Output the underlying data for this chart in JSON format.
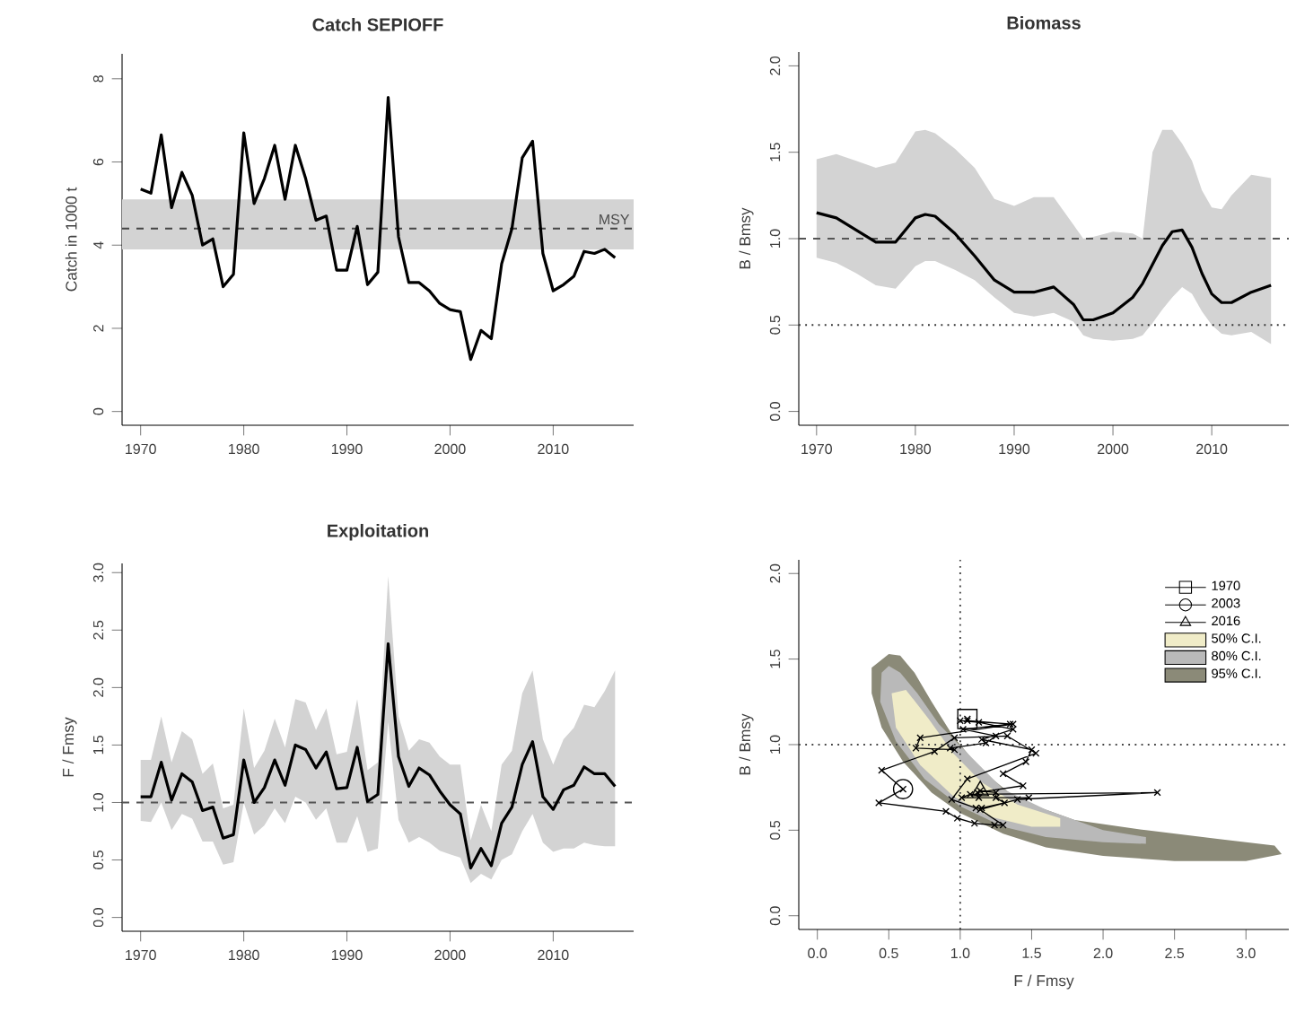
{
  "chart_data": [
    {
      "type": "line",
      "title": "Catch SEPIOFF",
      "ylabel": "Catch in 1000 t",
      "x": [
        1970,
        1971,
        1972,
        1973,
        1974,
        1975,
        1976,
        1977,
        1978,
        1979,
        1980,
        1981,
        1982,
        1983,
        1984,
        1985,
        1986,
        1987,
        1988,
        1989,
        1990,
        1991,
        1992,
        1993,
        1994,
        1995,
        1996,
        1997,
        1998,
        1999,
        2000,
        2001,
        2002,
        2003,
        2004,
        2005,
        2006,
        2007,
        2008,
        2009,
        2010,
        2011,
        2012,
        2013,
        2014,
        2015,
        2016
      ],
      "series": [
        {
          "color": "#000000",
          "values": [
            5.35,
            5.25,
            6.65,
            4.9,
            5.75,
            5.2,
            4.0,
            4.15,
            3.0,
            3.3,
            6.7,
            5.0,
            5.6,
            6.4,
            5.1,
            6.4,
            5.6,
            4.6,
            4.7,
            3.4,
            3.4,
            4.45,
            3.05,
            3.35,
            7.55,
            4.2,
            3.1,
            3.1,
            2.9,
            2.6,
            2.45,
            2.4,
            1.25,
            1.95,
            1.75,
            3.55,
            4.4,
            6.1,
            6.5,
            3.8,
            2.9,
            3.05,
            3.25,
            3.85,
            3.8,
            3.9,
            3.7
          ]
        }
      ],
      "bands": [
        {
          "axis": "y",
          "from": 3.9,
          "to": 5.1,
          "color": "#d3d3d3"
        }
      ],
      "ref_lines": [
        {
          "axis": "y",
          "value": 4.4,
          "label": "MSY",
          "color": "#444444",
          "line_style": "dashed"
        }
      ],
      "xlim": [
        1968.2,
        2017.8
      ],
      "ylim": [
        -0.33,
        8.6
      ],
      "xticks": [
        1970,
        1980,
        1990,
        2000,
        2010
      ],
      "yticks": [
        0,
        2,
        4,
        6,
        8
      ]
    },
    {
      "type": "line",
      "title": "Biomass",
      "ylabel": "B / Bmsy",
      "series": [
        {
          "color": "#000000",
          "x": [
            1970,
            1972,
            1974,
            1976,
            1978,
            1980,
            1981,
            1982,
            1984,
            1986,
            1988,
            1990,
            1992,
            1994,
            1996,
            1997,
            1998,
            2000,
            2002,
            2003,
            2004,
            2005,
            2006,
            2007,
            2008,
            2009,
            2010,
            2011,
            2012,
            2014,
            2016
          ],
          "values": [
            1.15,
            1.12,
            1.05,
            0.98,
            0.98,
            1.12,
            1.14,
            1.13,
            1.03,
            0.9,
            0.76,
            0.69,
            0.69,
            0.72,
            0.62,
            0.53,
            0.53,
            0.57,
            0.66,
            0.74,
            0.85,
            0.96,
            1.04,
            1.05,
            0.95,
            0.8,
            0.68,
            0.63,
            0.63,
            0.69,
            0.73
          ],
          "upper": [
            1.46,
            1.49,
            1.45,
            1.41,
            1.44,
            1.62,
            1.63,
            1.61,
            1.52,
            1.41,
            1.23,
            1.19,
            1.24,
            1.24,
            1.08,
            1.0,
            1.01,
            1.04,
            1.03,
            1.0,
            1.5,
            1.63,
            1.63,
            1.55,
            1.45,
            1.28,
            1.18,
            1.17,
            1.25,
            1.37,
            1.35
          ],
          "lower": [
            0.89,
            0.86,
            0.8,
            0.73,
            0.71,
            0.84,
            0.87,
            0.87,
            0.82,
            0.76,
            0.66,
            0.57,
            0.55,
            0.57,
            0.52,
            0.44,
            0.42,
            0.41,
            0.42,
            0.44,
            0.51,
            0.59,
            0.66,
            0.72,
            0.68,
            0.58,
            0.5,
            0.45,
            0.44,
            0.46,
            0.39
          ]
        }
      ],
      "ref_lines": [
        {
          "axis": "y",
          "value": 1.0,
          "color": "#555555",
          "line_style": "dashed"
        },
        {
          "axis": "y",
          "value": 0.5,
          "color": "#333333",
          "line_style": "dotted"
        }
      ],
      "xlim": [
        1968.2,
        2017.8
      ],
      "ylim": [
        -0.08,
        2.08
      ],
      "xticks": [
        1970,
        1980,
        1990,
        2000,
        2010
      ],
      "yticks": [
        {
          "value": 0,
          "label": "0.0"
        },
        {
          "value": 0.5,
          "label": "0.5"
        },
        {
          "value": 1,
          "label": "1.0"
        },
        {
          "value": 1.5,
          "label": "1.5"
        },
        {
          "value": 2,
          "label": "2.0"
        }
      ]
    },
    {
      "type": "line",
      "title": "Exploitation",
      "ylabel": "F / Fmsy",
      "x": [
        1970,
        1971,
        1972,
        1973,
        1974,
        1975,
        1976,
        1977,
        1978,
        1979,
        1980,
        1981,
        1982,
        1983,
        1984,
        1985,
        1986,
        1987,
        1988,
        1989,
        1990,
        1991,
        1992,
        1993,
        1994,
        1995,
        1996,
        1997,
        1998,
        1999,
        2000,
        2001,
        2002,
        2003,
        2004,
        2005,
        2006,
        2007,
        2008,
        2009,
        2010,
        2011,
        2012,
        2013,
        2014,
        2015,
        2016
      ],
      "series": [
        {
          "color": "#000000",
          "values": [
            1.05,
            1.05,
            1.35,
            1.02,
            1.25,
            1.18,
            0.93,
            0.96,
            0.69,
            0.72,
            1.37,
            1.0,
            1.13,
            1.37,
            1.15,
            1.5,
            1.46,
            1.3,
            1.44,
            1.12,
            1.13,
            1.48,
            1.01,
            1.07,
            2.38,
            1.4,
            1.14,
            1.3,
            1.24,
            1.1,
            0.98,
            0.9,
            0.43,
            0.6,
            0.45,
            0.82,
            0.96,
            1.33,
            1.53,
            1.05,
            0.94,
            1.11,
            1.15,
            1.31,
            1.25,
            1.25,
            1.14
          ],
          "upper": [
            1.37,
            1.37,
            1.75,
            1.35,
            1.62,
            1.55,
            1.25,
            1.34,
            0.95,
            0.98,
            1.82,
            1.3,
            1.45,
            1.73,
            1.48,
            1.9,
            1.87,
            1.63,
            1.82,
            1.42,
            1.44,
            1.9,
            1.28,
            1.35,
            2.97,
            1.75,
            1.45,
            1.55,
            1.52,
            1.4,
            1.33,
            1.33,
            0.67,
            0.98,
            0.75,
            1.33,
            1.45,
            1.95,
            2.15,
            1.55,
            1.33,
            1.55,
            1.65,
            1.85,
            1.83,
            1.97,
            2.15
          ],
          "lower": [
            0.84,
            0.83,
            1.0,
            0.76,
            0.9,
            0.86,
            0.66,
            0.66,
            0.46,
            0.48,
            1.0,
            0.72,
            0.8,
            0.95,
            0.82,
            1.05,
            1.0,
            0.85,
            0.95,
            0.65,
            0.65,
            0.88,
            0.57,
            0.6,
            1.7,
            0.85,
            0.65,
            0.7,
            0.65,
            0.58,
            0.55,
            0.52,
            0.3,
            0.38,
            0.33,
            0.5,
            0.55,
            0.75,
            0.9,
            0.65,
            0.57,
            0.6,
            0.6,
            0.65,
            0.63,
            0.62,
            0.62
          ]
        }
      ],
      "ref_lines": [
        {
          "axis": "y",
          "value": 1.0,
          "color": "#555555",
          "line_style": "dashed"
        }
      ],
      "xlim": [
        1968.2,
        2017.8
      ],
      "ylim": [
        -0.12,
        3.08
      ],
      "xticks": [
        1970,
        1980,
        1990,
        2000,
        2010
      ],
      "yticks": [
        {
          "value": 0,
          "label": "0.0"
        },
        {
          "value": 0.5,
          "label": "0.5"
        },
        {
          "value": 1,
          "label": "1.0"
        },
        {
          "value": 1.5,
          "label": "1.5"
        },
        {
          "value": 2,
          "label": "2.0"
        },
        {
          "value": 2.5,
          "label": "2.5"
        },
        {
          "value": 3,
          "label": "3.0"
        }
      ]
    },
    {
      "type": "line",
      "xlabel": "F / Fmsy",
      "ylabel": "B / Bmsy",
      "legend": "top right",
      "series": [
        {
          "name": "1970",
          "type": "scatter",
          "marker": "square",
          "color": "#000000",
          "x": [
            1.05
          ],
          "values": [
            1.15
          ]
        },
        {
          "name": "2003",
          "type": "scatter",
          "marker": "circle",
          "color": "#000000",
          "x": [
            0.6
          ],
          "values": [
            0.74
          ]
        },
        {
          "name": "2016",
          "type": "scatter",
          "marker": "triangle",
          "color": "#000000",
          "x": [
            1.14
          ],
          "values": [
            0.73
          ]
        },
        {
          "name": "50% C.I.",
          "type": "area",
          "color": "#f0ecc8",
          "x": [
            0.52,
            0.55,
            0.72,
            0.95,
            1.2,
            1.5,
            1.7,
            1.7,
            1.4,
            1.15,
            0.95,
            0.78,
            0.62,
            0.52
          ],
          "values": [
            1.3,
            1.1,
            0.88,
            0.7,
            0.58,
            0.52,
            0.52,
            0.57,
            0.65,
            0.78,
            0.95,
            1.15,
            1.32,
            1.3
          ]
        },
        {
          "name": "80% C.I.",
          "type": "area",
          "color": "#b9b9b9",
          "x": [
            0.45,
            0.44,
            0.55,
            0.75,
            1.0,
            1.3,
            1.6,
            2.0,
            2.3,
            2.3,
            2.0,
            1.6,
            1.3,
            1.05,
            0.85,
            0.7,
            0.58,
            0.5,
            0.45
          ],
          "values": [
            1.42,
            1.25,
            1.02,
            0.8,
            0.64,
            0.52,
            0.46,
            0.43,
            0.42,
            0.46,
            0.5,
            0.62,
            0.74,
            0.95,
            1.12,
            1.3,
            1.42,
            1.46,
            1.42
          ]
        },
        {
          "name": "95% C.I.",
          "type": "area",
          "color": "#8b8a78",
          "x": [
            0.5,
            0.38,
            0.38,
            0.45,
            0.6,
            0.8,
            1.0,
            1.3,
            1.6,
            2.0,
            2.5,
            3.0,
            3.25,
            3.2,
            2.8,
            2.3,
            1.8,
            1.4,
            1.15,
            0.95,
            0.8,
            0.68,
            0.58,
            0.5
          ],
          "values": [
            1.53,
            1.45,
            1.3,
            1.1,
            0.9,
            0.72,
            0.6,
            0.48,
            0.4,
            0.35,
            0.32,
            0.32,
            0.36,
            0.41,
            0.45,
            0.5,
            0.56,
            0.68,
            0.85,
            1.05,
            1.25,
            1.42,
            1.52,
            1.53
          ]
        },
        {
          "type": "line",
          "marker": "cross",
          "color": "#000000",
          "x": [
            1.05,
            1.05,
            1.35,
            1.02,
            1.25,
            1.18,
            0.93,
            0.96,
            0.69,
            0.72,
            1.37,
            1.0,
            1.13,
            1.37,
            1.15,
            1.5,
            1.46,
            1.3,
            1.44,
            1.12,
            1.13,
            1.48,
            1.01,
            1.07,
            2.38,
            1.4,
            1.14,
            1.3,
            1.24,
            1.1,
            0.98,
            0.9,
            0.43,
            0.6,
            0.45,
            0.82,
            0.96,
            1.33,
            1.53,
            1.05,
            0.94,
            1.11,
            1.15,
            1.31,
            1.25,
            1.25,
            1.14
          ],
          "values": [
            1.15,
            1.14,
            1.12,
            1.09,
            1.05,
            1.01,
            0.98,
            0.97,
            0.98,
            1.04,
            1.12,
            1.14,
            1.13,
            1.09,
            1.03,
            0.97,
            0.9,
            0.83,
            0.76,
            0.72,
            0.69,
            0.69,
            0.69,
            0.71,
            0.72,
            0.68,
            0.62,
            0.53,
            0.53,
            0.54,
            0.57,
            0.61,
            0.66,
            0.74,
            0.85,
            0.96,
            1.04,
            1.05,
            0.95,
            0.8,
            0.68,
            0.63,
            0.63,
            0.66,
            0.69,
            0.72,
            0.73
          ]
        }
      ],
      "ref_lines": [
        {
          "axis": "x",
          "value": 1.0,
          "color": "#444444",
          "line_style": "dotted"
        },
        {
          "axis": "y",
          "value": 1.0,
          "color": "#444444",
          "line_style": "dotted"
        }
      ],
      "xlim": [
        -0.13,
        3.3
      ],
      "ylim": [
        -0.08,
        2.08
      ],
      "xticks": [
        {
          "value": 0,
          "label": "0.0"
        },
        {
          "value": 0.5,
          "label": "0.5"
        },
        {
          "value": 1,
          "label": "1.0"
        },
        {
          "value": 1.5,
          "label": "1.5"
        },
        {
          "value": 2,
          "label": "2.0"
        },
        {
          "value": 2.5,
          "label": "2.5"
        },
        {
          "value": 3,
          "label": "3.0"
        }
      ],
      "yticks": [
        {
          "value": 0,
          "label": "0.0"
        },
        {
          "value": 0.5,
          "label": "0.5"
        },
        {
          "value": 1,
          "label": "1.0"
        },
        {
          "value": 1.5,
          "label": "1.5"
        },
        {
          "value": 2,
          "label": "2.0"
        }
      ]
    }
  ]
}
